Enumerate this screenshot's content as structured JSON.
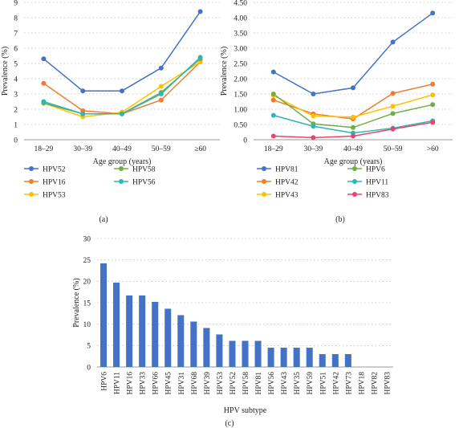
{
  "colors": {
    "blue": "#4472C4",
    "orange": "#ED7D31",
    "yellow": "#FFC000",
    "green": "#70AD47",
    "teal": "#2DB6B6",
    "pink": "#E9456B",
    "grid": "#bdbdbd",
    "axis": "#999999"
  },
  "chart_data": [
    {
      "type": "line",
      "panel_label": "(a)",
      "xlabel": "Age group (years)",
      "ylabel": "Prevalence (%)",
      "categories": [
        "18–29",
        "30–39",
        "40–49",
        "50–59",
        "≥60"
      ],
      "ylim": [
        0,
        9
      ],
      "yticks": [
        0,
        1,
        2,
        3,
        4,
        5,
        6,
        7,
        8,
        9
      ],
      "grid": "dotted horizontal",
      "legend": "bottom",
      "series": [
        {
          "name": "HPV52",
          "color": "#4472C4",
          "values": [
            5.3,
            3.2,
            3.2,
            4.7,
            8.4
          ]
        },
        {
          "name": "HPV16",
          "color": "#ED7D31",
          "values": [
            3.7,
            1.9,
            1.7,
            2.6,
            5.1
          ]
        },
        {
          "name": "HPV53",
          "color": "#FFC000",
          "values": [
            2.4,
            1.5,
            1.8,
            3.5,
            5.1
          ]
        },
        {
          "name": "HPV58",
          "color": "#70AD47",
          "values": [
            2.4,
            1.7,
            1.7,
            3.1,
            5.3
          ]
        },
        {
          "name": "HPV56",
          "color": "#2DB6B6",
          "values": [
            2.5,
            1.7,
            1.7,
            3.0,
            5.4
          ]
        }
      ],
      "legend_order": [
        "HPV52",
        "HPV58",
        "HPV16",
        "HPV56",
        "HPV53"
      ]
    },
    {
      "type": "line",
      "panel_label": "(b)",
      "xlabel": "Age group (years)",
      "ylabel": "Prevalence (%)",
      "categories": [
        "18–29",
        "30–39",
        "40–49",
        "50–59",
        ">60"
      ],
      "ylim": [
        0,
        4.5
      ],
      "yticks": [
        "0",
        "0.50",
        "1.00",
        "1.50",
        "2.00",
        "2.50",
        "3.00",
        "3.50",
        "4.00",
        "4.50"
      ],
      "grid": "dotted horizontal",
      "legend": "bottom",
      "series": [
        {
          "name": "HPV81",
          "color": "#4472C4",
          "values": [
            2.22,
            1.5,
            1.7,
            3.2,
            4.15
          ]
        },
        {
          "name": "HPV42",
          "color": "#ED7D31",
          "values": [
            1.3,
            0.85,
            0.68,
            1.52,
            1.82
          ]
        },
        {
          "name": "HPV43",
          "color": "#FFC000",
          "values": [
            1.45,
            0.78,
            0.74,
            1.1,
            1.47
          ]
        },
        {
          "name": "HPV6",
          "color": "#70AD47",
          "values": [
            1.5,
            0.52,
            0.4,
            0.86,
            1.15
          ]
        },
        {
          "name": "HPV11",
          "color": "#2DB6B6",
          "values": [
            0.8,
            0.44,
            0.22,
            0.38,
            0.62
          ]
        },
        {
          "name": "HPV83",
          "color": "#E9456B",
          "values": [
            0.12,
            0.07,
            0.12,
            0.35,
            0.57
          ]
        }
      ],
      "legend_order": [
        "HPV81",
        "HPV6",
        "HPV42",
        "HPV11",
        "HPV43",
        "HPV83"
      ]
    },
    {
      "type": "bar",
      "panel_label": "(c)",
      "xlabel": "HPV subtype",
      "ylabel": "Prevalence (%)",
      "ylim": [
        0,
        30
      ],
      "yticks": [
        0,
        5,
        10,
        15,
        20,
        25,
        30
      ],
      "grid": "dotted horizontal",
      "color": "#4472C4",
      "categories": [
        "HPV6",
        "HPV11",
        "HPV16",
        "HPV33",
        "HPV66",
        "HPV45",
        "HPV31",
        "HPV68",
        "HPV39",
        "HPV53",
        "HPV52",
        "HPV58",
        "HPV81",
        "HPV56",
        "HPV43",
        "HPV35",
        "HPV59",
        "HPV51",
        "HPV42",
        "HPV73",
        "HPV18",
        "HPV82",
        "HPV83"
      ],
      "values": [
        24.2,
        19.7,
        16.7,
        16.7,
        15.2,
        13.6,
        12.1,
        10.6,
        9.1,
        7.6,
        6.1,
        6.1,
        6.1,
        4.5,
        4.5,
        4.5,
        4.5,
        3.0,
        3.0,
        3.0,
        0,
        0,
        0
      ]
    }
  ]
}
